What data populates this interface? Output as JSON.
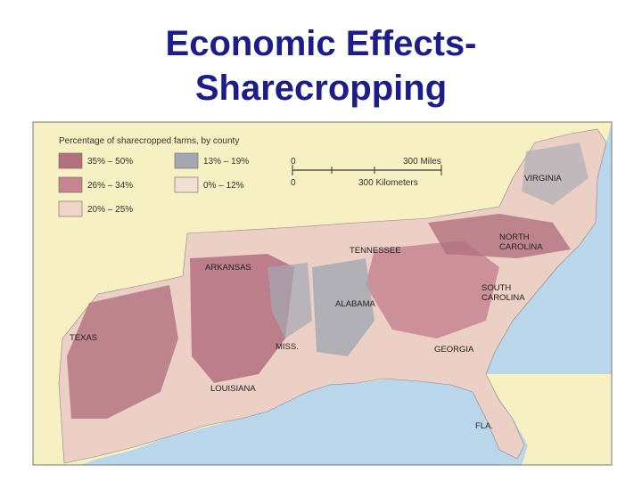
{
  "title": {
    "lines": [
      "Economic Effects-",
      "Sharecropping"
    ]
  },
  "legend": {
    "title": "Percentage of sharecropped farms, by county",
    "items": [
      {
        "label": "35% – 50%",
        "color": "#b3707f"
      },
      {
        "label": "26% – 34%",
        "color": "#c68590"
      },
      {
        "label": "20% – 25%",
        "color": "#f0d4c8"
      },
      {
        "label": "13% – 19%",
        "color": "#a3a8b3"
      },
      {
        "label": "0% – 12%",
        "color": "#f4dfd3"
      }
    ]
  },
  "scale": {
    "miles_zero": "0",
    "miles": "300 Miles",
    "km_zero": "0",
    "km": "300 Kilometers"
  },
  "labels": [
    {
      "lines": [
        "VIRGINIA"
      ]
    },
    {
      "lines": [
        "NORTH",
        "CAROLINA"
      ]
    },
    {
      "lines": [
        "TENNESSEE"
      ]
    },
    {
      "lines": [
        "ARKANSAS"
      ]
    },
    {
      "lines": [
        "SOUTH",
        "CAROLINA"
      ]
    },
    {
      "lines": [
        "ALABAMA"
      ]
    },
    {
      "lines": [
        "TEXAS"
      ]
    },
    {
      "lines": [
        "MISS."
      ]
    },
    {
      "lines": [
        "GEORGIA"
      ]
    },
    {
      "lines": [
        "LOUISIANA"
      ]
    },
    {
      "lines": [
        "FLA."
      ]
    }
  ]
}
